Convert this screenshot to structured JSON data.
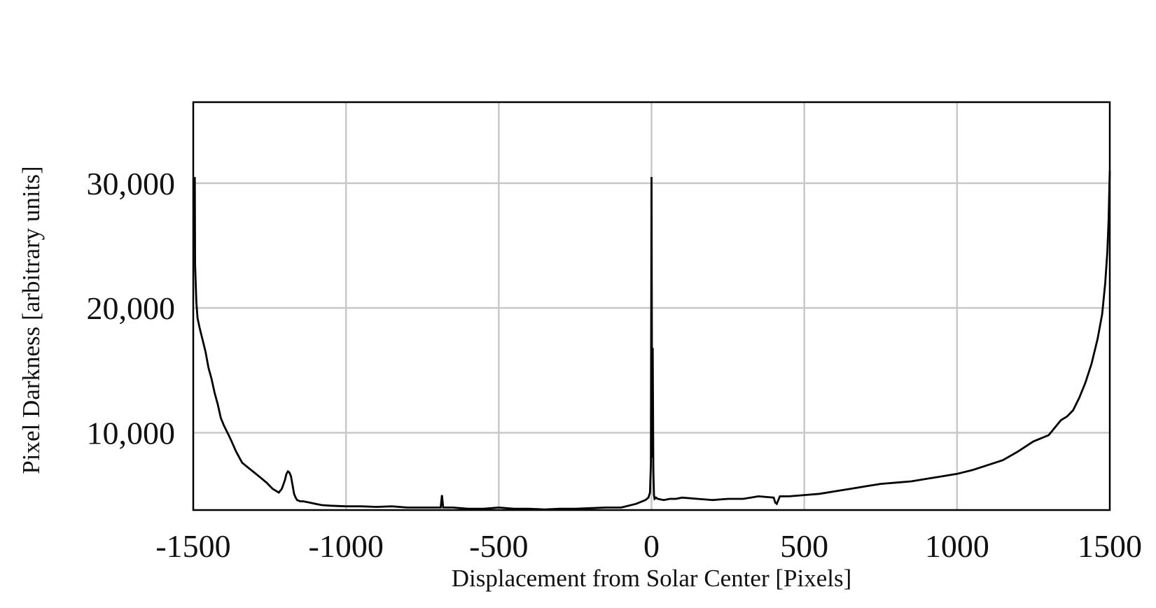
{
  "chart_data": {
    "type": "line",
    "title": "",
    "xlabel": "Displacement from Solar Center [Pixels]",
    "ylabel": "Pixel Darkness [arbitrary units]",
    "xlim": [
      -1500,
      1500
    ],
    "ylim": [
      3800,
      36500
    ],
    "x_ticks": [
      -1500,
      -1000,
      -500,
      0,
      500,
      1000,
      1500
    ],
    "x_tick_labels": [
      "-1500",
      "-1000",
      "-500",
      "0",
      "500",
      "1000",
      "1500"
    ],
    "y_ticks": [
      10000,
      20000,
      30000
    ],
    "y_tick_labels": [
      "10,000",
      "20,000",
      "30,000"
    ],
    "grid": true,
    "legend": "none",
    "colors": {
      "line": "#000000",
      "grid": "#c8c8c8",
      "frame": "#000000"
    },
    "series": [
      {
        "x": [
          -1495,
          -1494,
          -1492,
          -1490,
          -1486,
          -1480,
          -1470,
          -1460,
          -1450,
          -1440,
          -1430,
          -1420,
          -1410,
          -1400,
          -1380,
          -1360,
          -1340,
          -1320,
          -1300,
          -1280,
          -1260,
          -1240,
          -1220,
          -1210,
          -1200,
          -1195,
          -1190,
          -1185,
          -1180,
          -1175,
          -1170,
          -1165,
          -1160,
          -1150,
          -1140,
          -1120,
          -1100,
          -1080,
          -1050,
          -1000,
          -950,
          -900,
          -850,
          -800,
          -750,
          -700,
          -690,
          -686,
          -682,
          -678,
          -650,
          -600,
          -550,
          -500,
          -450,
          -400,
          -350,
          -300,
          -250,
          -200,
          -150,
          -100,
          -50,
          -20,
          -10,
          -5,
          -2,
          0,
          2,
          4,
          6,
          8,
          10,
          15,
          20,
          40,
          60,
          80,
          100,
          150,
          200,
          250,
          300,
          350,
          400,
          405,
          410,
          420,
          450,
          500,
          550,
          600,
          650,
          700,
          750,
          800,
          850,
          900,
          950,
          1000,
          1050,
          1100,
          1150,
          1200,
          1250,
          1300,
          1340,
          1360,
          1380,
          1400,
          1420,
          1440,
          1460,
          1475,
          1485,
          1492,
          1496,
          1498,
          1500
        ],
        "values": [
          30500,
          23500,
          22000,
          20500,
          19200,
          18500,
          17500,
          16500,
          15200,
          14300,
          13200,
          12300,
          11200,
          10600,
          9600,
          8500,
          7600,
          7200,
          6800,
          6400,
          6000,
          5500,
          5200,
          5500,
          6200,
          6700,
          6900,
          6800,
          6500,
          5800,
          5100,
          4800,
          4600,
          4500,
          4500,
          4400,
          4300,
          4200,
          4150,
          4100,
          4100,
          4050,
          4100,
          4000,
          4000,
          4000,
          4000,
          5000,
          4000,
          4000,
          4000,
          3900,
          3900,
          4000,
          3900,
          3900,
          3850,
          3900,
          3900,
          3950,
          4000,
          4000,
          4300,
          4600,
          4800,
          5200,
          7500,
          30500,
          8000,
          16800,
          7000,
          5000,
          4700,
          4800,
          4700,
          4600,
          4700,
          4700,
          4800,
          4700,
          4600,
          4700,
          4700,
          4900,
          4800,
          4400,
          4300,
          4900,
          4900,
          5000,
          5100,
          5300,
          5500,
          5700,
          5900,
          6000,
          6100,
          6300,
          6500,
          6700,
          7000,
          7400,
          7800,
          8500,
          9300,
          9800,
          11000,
          11300,
          11800,
          12800,
          14000,
          15500,
          17500,
          19500,
          22000,
          24500,
          27000,
          29000,
          31000
        ]
      }
    ]
  }
}
